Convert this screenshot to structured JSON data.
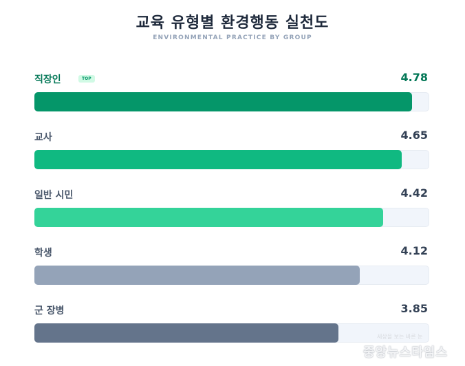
{
  "header": {
    "title": "교육 유형별 환경행동 실천도",
    "subtitle": "ENVIRONMENTAL PRACTICE BY GROUP"
  },
  "badge": {
    "top_label": "TOP"
  },
  "rows": [
    {
      "label": "직장인",
      "value": "4.78",
      "color": "#059669",
      "top": true,
      "value_color": "#047857"
    },
    {
      "label": "교사",
      "value": "4.65",
      "color": "#10b981",
      "top": false,
      "value_color": "#334155"
    },
    {
      "label": "일반 시민",
      "value": "4.42",
      "color": "#34d399",
      "top": false,
      "value_color": "#334155"
    },
    {
      "label": "학생",
      "value": "4.12",
      "color": "#94a3b8",
      "top": false,
      "value_color": "#334155"
    },
    {
      "label": "군 장병",
      "value": "3.85",
      "color": "#64748b",
      "top": false,
      "value_color": "#334155"
    }
  ],
  "watermark": {
    "main": "중앙뉴스타임스",
    "small": "세상을 보는 바른 눈"
  },
  "chart_data": {
    "type": "bar",
    "orientation": "horizontal",
    "title": "교육 유형별 환경행동 실천도",
    "subtitle": "ENVIRONMENTAL PRACTICE BY GROUP",
    "categories": [
      "직장인",
      "교사",
      "일반 시민",
      "학생",
      "군 장병"
    ],
    "values": [
      4.78,
      4.65,
      4.42,
      4.12,
      3.85
    ],
    "xlim": [
      0,
      5
    ],
    "colors": [
      "#059669",
      "#10b981",
      "#34d399",
      "#94a3b8",
      "#64748b"
    ],
    "annotations": [
      {
        "category": "직장인",
        "text": "TOP"
      }
    ],
    "grid": false,
    "legend": null
  }
}
